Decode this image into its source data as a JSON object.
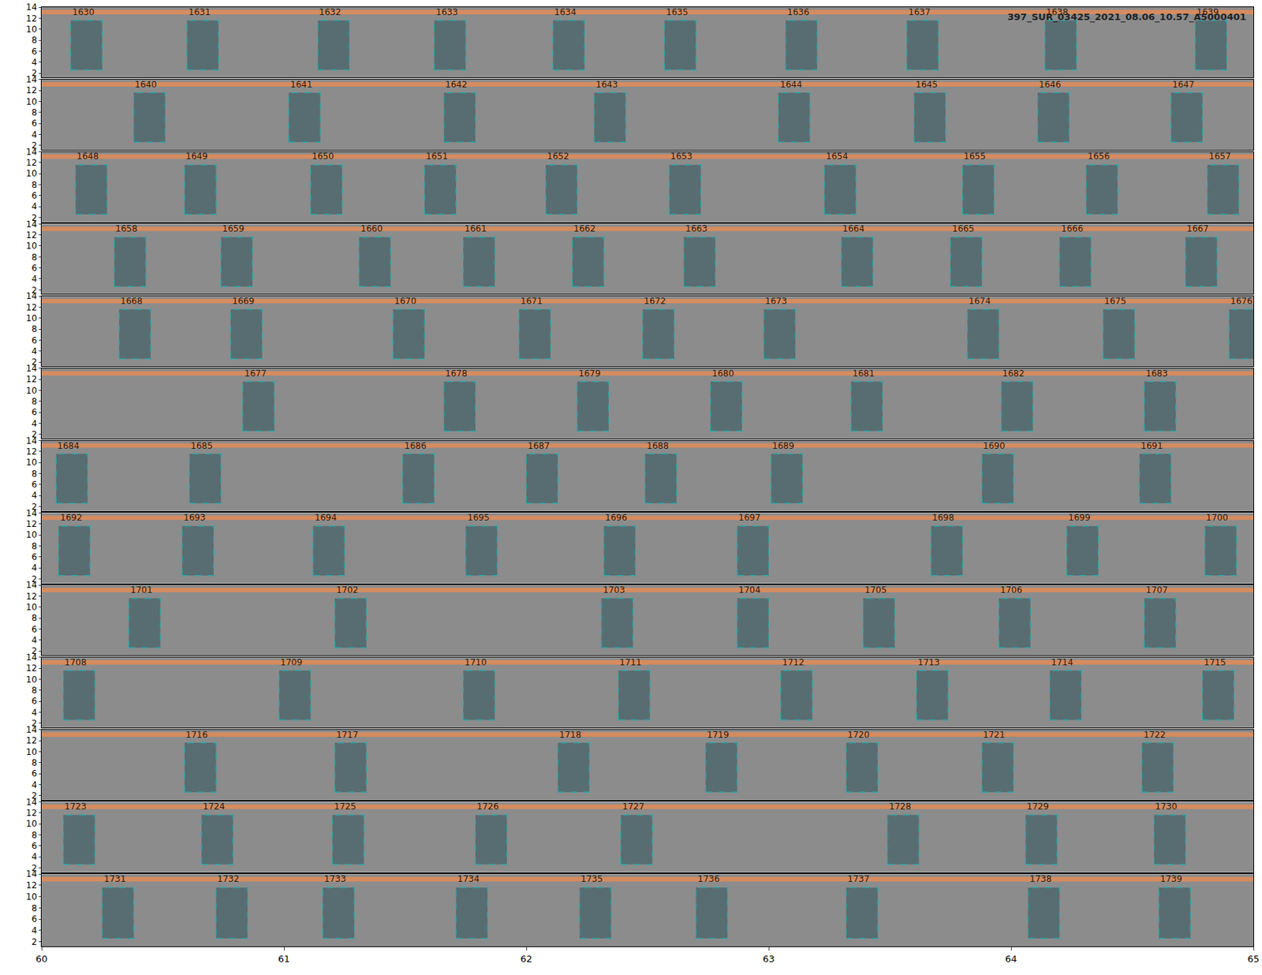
{
  "chart_data": {
    "type": "spectrogram_annotations",
    "title": "397_SUR_03425_2021_08.06_10.57_A5000401",
    "xlim": [
      60,
      65
    ],
    "xticks": [
      60,
      61,
      62,
      63,
      64,
      65
    ],
    "ylim": [
      1.2,
      14
    ],
    "yticks": [
      2,
      4,
      6,
      8,
      10,
      12,
      14
    ],
    "band_y": [
      12.7,
      13.5
    ],
    "box_y": [
      2.6,
      11.6
    ],
    "rows": [
      {
        "boxes": [
          {
            "label": "1630",
            "x0": 60.12,
            "x1": 60.25
          },
          {
            "label": "1631",
            "x0": 60.6,
            "x1": 60.73
          },
          {
            "label": "1632",
            "x0": 61.14,
            "x1": 61.27
          },
          {
            "label": "1633",
            "x0": 61.62,
            "x1": 61.75
          },
          {
            "label": "1634",
            "x0": 62.11,
            "x1": 62.24
          },
          {
            "label": "1635",
            "x0": 62.57,
            "x1": 62.7
          },
          {
            "label": "1636",
            "x0": 63.07,
            "x1": 63.2
          },
          {
            "label": "1637",
            "x0": 63.57,
            "x1": 63.7
          },
          {
            "label": "1638",
            "x0": 64.14,
            "x1": 64.27
          },
          {
            "label": "1639",
            "x0": 64.76,
            "x1": 64.89
          }
        ]
      },
      {
        "boxes": [
          {
            "label": "1640",
            "x0": 60.38,
            "x1": 60.51
          },
          {
            "label": "1641",
            "x0": 61.02,
            "x1": 61.15
          },
          {
            "label": "1642",
            "x0": 61.66,
            "x1": 61.79
          },
          {
            "label": "1643",
            "x0": 62.28,
            "x1": 62.41
          },
          {
            "label": "1644",
            "x0": 63.04,
            "x1": 63.17
          },
          {
            "label": "1645",
            "x0": 63.6,
            "x1": 63.73
          },
          {
            "label": "1646",
            "x0": 64.11,
            "x1": 64.24
          },
          {
            "label": "1647",
            "x0": 64.66,
            "x1": 64.79
          }
        ]
      },
      {
        "boxes": [
          {
            "label": "1648",
            "x0": 60.14,
            "x1": 60.27
          },
          {
            "label": "1649",
            "x0": 60.59,
            "x1": 60.72
          },
          {
            "label": "1650",
            "x0": 61.11,
            "x1": 61.24
          },
          {
            "label": "1651",
            "x0": 61.58,
            "x1": 61.71
          },
          {
            "label": "1652",
            "x0": 62.08,
            "x1": 62.21
          },
          {
            "label": "1653",
            "x0": 62.59,
            "x1": 62.72
          },
          {
            "label": "1654",
            "x0": 63.23,
            "x1": 63.36
          },
          {
            "label": "1655",
            "x0": 63.8,
            "x1": 63.93
          },
          {
            "label": "1656",
            "x0": 64.31,
            "x1": 64.44
          },
          {
            "label": "1657",
            "x0": 64.81,
            "x1": 64.94
          }
        ]
      },
      {
        "boxes": [
          {
            "label": "1658",
            "x0": 60.3,
            "x1": 60.43
          },
          {
            "label": "1659",
            "x0": 60.74,
            "x1": 60.87
          },
          {
            "label": "1660",
            "x0": 61.31,
            "x1": 61.44
          },
          {
            "label": "1661",
            "x0": 61.74,
            "x1": 61.87
          },
          {
            "label": "1662",
            "x0": 62.19,
            "x1": 62.32
          },
          {
            "label": "1663",
            "x0": 62.65,
            "x1": 62.78
          },
          {
            "label": "1664",
            "x0": 63.3,
            "x1": 63.43
          },
          {
            "label": "1665",
            "x0": 63.75,
            "x1": 63.88
          },
          {
            "label": "1666",
            "x0": 64.2,
            "x1": 64.33
          },
          {
            "label": "1667",
            "x0": 64.72,
            "x1": 64.85
          }
        ]
      },
      {
        "boxes": [
          {
            "label": "1668",
            "x0": 60.32,
            "x1": 60.45
          },
          {
            "label": "1669",
            "x0": 60.78,
            "x1": 60.91
          },
          {
            "label": "1670",
            "x0": 61.45,
            "x1": 61.58
          },
          {
            "label": "1671",
            "x0": 61.97,
            "x1": 62.1
          },
          {
            "label": "1672",
            "x0": 62.48,
            "x1": 62.61
          },
          {
            "label": "1673",
            "x0": 62.98,
            "x1": 63.11
          },
          {
            "label": "1674",
            "x0": 63.82,
            "x1": 63.95
          },
          {
            "label": "1675",
            "x0": 64.38,
            "x1": 64.51
          },
          {
            "label": "1676",
            "x0": 64.9,
            "x1": 65.03
          }
        ]
      },
      {
        "boxes": [
          {
            "label": "1677",
            "x0": 60.83,
            "x1": 60.96
          },
          {
            "label": "1678",
            "x0": 61.66,
            "x1": 61.79
          },
          {
            "label": "1679",
            "x0": 62.21,
            "x1": 62.34
          },
          {
            "label": "1680",
            "x0": 62.76,
            "x1": 62.89
          },
          {
            "label": "1681",
            "x0": 63.34,
            "x1": 63.47
          },
          {
            "label": "1682",
            "x0": 63.96,
            "x1": 64.09
          },
          {
            "label": "1683",
            "x0": 64.55,
            "x1": 64.68
          }
        ]
      },
      {
        "boxes": [
          {
            "label": "1684",
            "x0": 60.06,
            "x1": 60.19
          },
          {
            "label": "1685",
            "x0": 60.61,
            "x1": 60.74
          },
          {
            "label": "1686",
            "x0": 61.49,
            "x1": 61.62
          },
          {
            "label": "1687",
            "x0": 62.0,
            "x1": 62.13
          },
          {
            "label": "1688",
            "x0": 62.49,
            "x1": 62.62
          },
          {
            "label": "1689",
            "x0": 63.01,
            "x1": 63.14
          },
          {
            "label": "1690",
            "x0": 63.88,
            "x1": 64.01
          },
          {
            "label": "1691",
            "x0": 64.53,
            "x1": 64.66
          }
        ]
      },
      {
        "boxes": [
          {
            "label": "1692",
            "x0": 60.07,
            "x1": 60.2
          },
          {
            "label": "1693",
            "x0": 60.58,
            "x1": 60.71
          },
          {
            "label": "1694",
            "x0": 61.12,
            "x1": 61.25
          },
          {
            "label": "1695",
            "x0": 61.75,
            "x1": 61.88
          },
          {
            "label": "1696",
            "x0": 62.32,
            "x1": 62.45
          },
          {
            "label": "1697",
            "x0": 62.87,
            "x1": 63.0
          },
          {
            "label": "1698",
            "x0": 63.67,
            "x1": 63.8
          },
          {
            "label": "1699",
            "x0": 64.23,
            "x1": 64.36
          },
          {
            "label": "1700",
            "x0": 64.8,
            "x1": 64.93
          }
        ]
      },
      {
        "boxes": [
          {
            "label": "1701",
            "x0": 60.36,
            "x1": 60.49
          },
          {
            "label": "1702",
            "x0": 61.21,
            "x1": 61.34
          },
          {
            "label": "1703",
            "x0": 62.31,
            "x1": 62.44
          },
          {
            "label": "1704",
            "x0": 62.87,
            "x1": 63.0
          },
          {
            "label": "1705",
            "x0": 63.39,
            "x1": 63.52
          },
          {
            "label": "1706",
            "x0": 63.95,
            "x1": 64.08
          },
          {
            "label": "1707",
            "x0": 64.55,
            "x1": 64.68
          }
        ]
      },
      {
        "boxes": [
          {
            "label": "1708",
            "x0": 60.09,
            "x1": 60.22
          },
          {
            "label": "1709",
            "x0": 60.98,
            "x1": 61.11
          },
          {
            "label": "1710",
            "x0": 61.74,
            "x1": 61.87
          },
          {
            "label": "1711",
            "x0": 62.38,
            "x1": 62.51
          },
          {
            "label": "1712",
            "x0": 63.05,
            "x1": 63.18
          },
          {
            "label": "1713",
            "x0": 63.61,
            "x1": 63.74
          },
          {
            "label": "1714",
            "x0": 64.16,
            "x1": 64.29
          },
          {
            "label": "1715",
            "x0": 64.79,
            "x1": 64.92
          }
        ]
      },
      {
        "boxes": [
          {
            "label": "1716",
            "x0": 60.59,
            "x1": 60.72
          },
          {
            "label": "1717",
            "x0": 61.21,
            "x1": 61.34
          },
          {
            "label": "1718",
            "x0": 62.13,
            "x1": 62.26
          },
          {
            "label": "1719",
            "x0": 62.74,
            "x1": 62.87
          },
          {
            "label": "1720",
            "x0": 63.32,
            "x1": 63.45
          },
          {
            "label": "1721",
            "x0": 63.88,
            "x1": 64.01
          },
          {
            "label": "1722",
            "x0": 64.54,
            "x1": 64.67
          }
        ]
      },
      {
        "boxes": [
          {
            "label": "1723",
            "x0": 60.09,
            "x1": 60.22
          },
          {
            "label": "1724",
            "x0": 60.66,
            "x1": 60.79
          },
          {
            "label": "1725",
            "x0": 61.2,
            "x1": 61.33
          },
          {
            "label": "1726",
            "x0": 61.79,
            "x1": 61.92
          },
          {
            "label": "1727",
            "x0": 62.39,
            "x1": 62.52
          },
          {
            "label": "1728",
            "x0": 63.49,
            "x1": 63.62
          },
          {
            "label": "1729",
            "x0": 64.06,
            "x1": 64.19
          },
          {
            "label": "1730",
            "x0": 64.59,
            "x1": 64.72
          }
        ]
      },
      {
        "boxes": [
          {
            "label": "1731",
            "x0": 60.25,
            "x1": 60.38
          },
          {
            "label": "1732",
            "x0": 60.72,
            "x1": 60.85
          },
          {
            "label": "1733",
            "x0": 61.16,
            "x1": 61.29
          },
          {
            "label": "1734",
            "x0": 61.71,
            "x1": 61.84
          },
          {
            "label": "1735",
            "x0": 62.22,
            "x1": 62.35
          },
          {
            "label": "1736",
            "x0": 62.7,
            "x1": 62.83
          },
          {
            "label": "1737",
            "x0": 63.32,
            "x1": 63.45
          },
          {
            "label": "1738",
            "x0": 64.07,
            "x1": 64.2
          },
          {
            "label": "1739",
            "x0": 64.61,
            "x1": 64.74
          }
        ]
      }
    ]
  }
}
